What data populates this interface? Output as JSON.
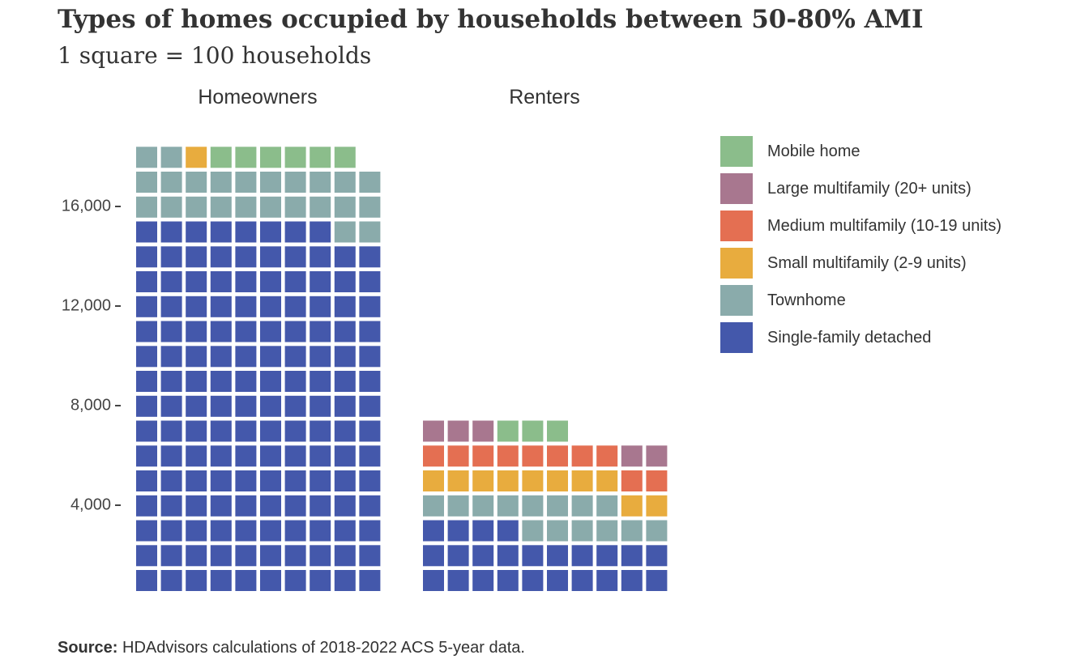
{
  "chart_data": {
    "type": "waffle",
    "title": "Types of homes occupied by households between 50-80% AMI",
    "subtitle": "1 square = 100 households",
    "unit_per_square": 100,
    "squares_per_row": 10,
    "facets": [
      {
        "name": "Homeowners",
        "stack": [
          {
            "category": "Single-family detached",
            "squares": 148
          },
          {
            "category": "Townhome",
            "squares": 24
          },
          {
            "category": "Small multifamily (2-9 units)",
            "squares": 1
          },
          {
            "category": "Mobile home",
            "squares": 6
          }
        ]
      },
      {
        "name": "Renters",
        "stack": [
          {
            "category": "Single-family detached",
            "squares": 24
          },
          {
            "category": "Townhome",
            "squares": 14
          },
          {
            "category": "Small multifamily (2-9 units)",
            "squares": 10
          },
          {
            "category": "Medium multifamily (10-19 units)",
            "squares": 10
          },
          {
            "category": "Large multifamily (20+ units)",
            "squares": 5
          },
          {
            "category": "Mobile home",
            "squares": 3
          }
        ]
      }
    ],
    "legend": [
      {
        "label": "Mobile home",
        "color": "#8bbd8b"
      },
      {
        "label": "Large multifamily (20+ units)",
        "color": "#a8778f"
      },
      {
        "label": "Medium multifamily (10-19 units)",
        "color": "#e46f52"
      },
      {
        "label": "Small multifamily (2-9 units)",
        "color": "#e8ac3e"
      },
      {
        "label": "Townhome",
        "color": "#8aabab"
      },
      {
        "label": "Single-family detached",
        "color": "#4458ab"
      }
    ],
    "y_ticks": [
      {
        "label": "4,000",
        "value": 4000
      },
      {
        "label": "8,000",
        "value": 8000
      },
      {
        "label": "12,000",
        "value": 12000
      },
      {
        "label": "16,000",
        "value": 16000
      }
    ],
    "legend_placement": "right"
  },
  "source": {
    "bold": "Source:",
    "text": "HDAdvisors  calculations of 2018-2022  ACS 5-year  data."
  }
}
